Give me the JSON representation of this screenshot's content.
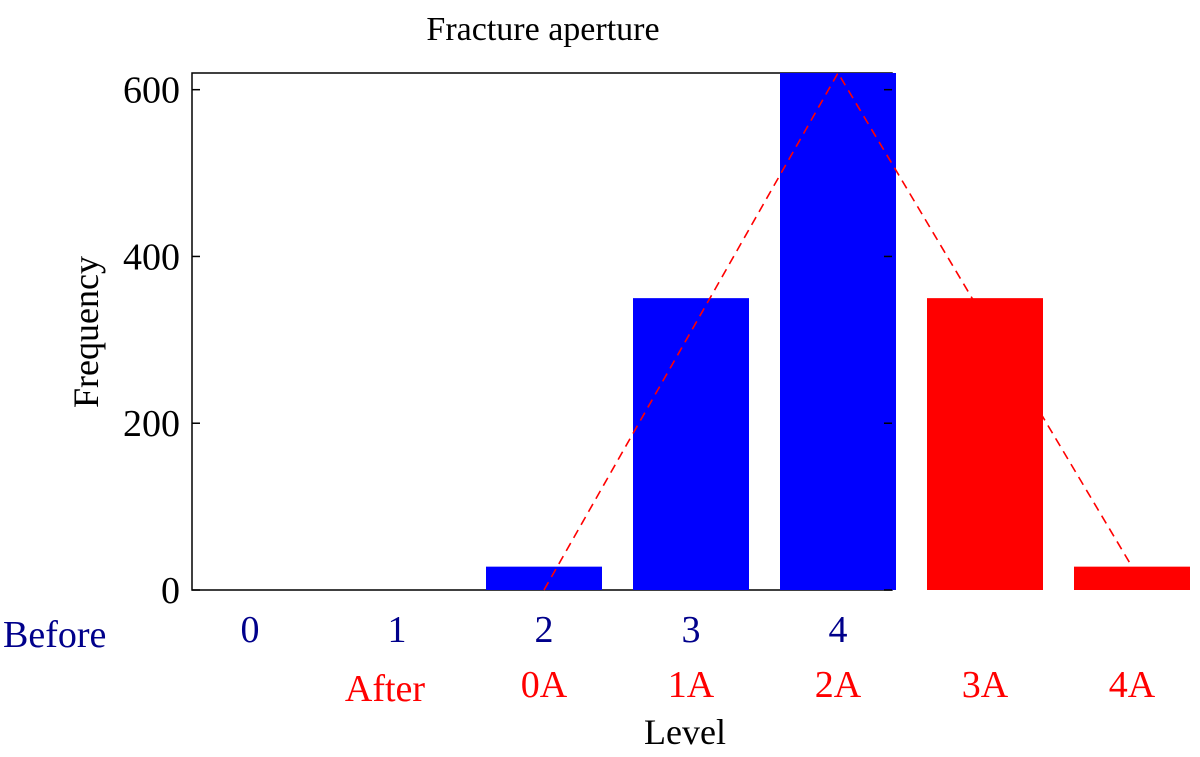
{
  "chart_data": {
    "type": "bar",
    "title": "Fracture aperture",
    "xlabel": "Level",
    "ylabel": "Frequency",
    "ylim": [
      0,
      620
    ],
    "yticks": [
      0,
      200,
      400,
      600
    ],
    "grid": false,
    "colors": {
      "before": "#0000ff",
      "after": "#ff0000",
      "before_label": "#00008b",
      "trend_line": "#ff0000"
    },
    "row_labels": {
      "before": "Before",
      "after": "After"
    },
    "categories_before": [
      "0",
      "1",
      "2",
      "3",
      "4"
    ],
    "categories_after": [
      "0A",
      "1A",
      "2A",
      "3A",
      "4A"
    ],
    "series": [
      {
        "values": [
          0,
          0,
          28,
          350,
          620
        ],
        "color": "#0000ff"
      },
      {
        "values": [
          28,
          350,
          620,
          350,
          28
        ],
        "color": "#ff0000"
      }
    ],
    "trend_line": {
      "style": "dashed",
      "points": [
        [
          2,
          0
        ],
        [
          4,
          620
        ],
        [
          6,
          28
        ]
      ]
    }
  }
}
